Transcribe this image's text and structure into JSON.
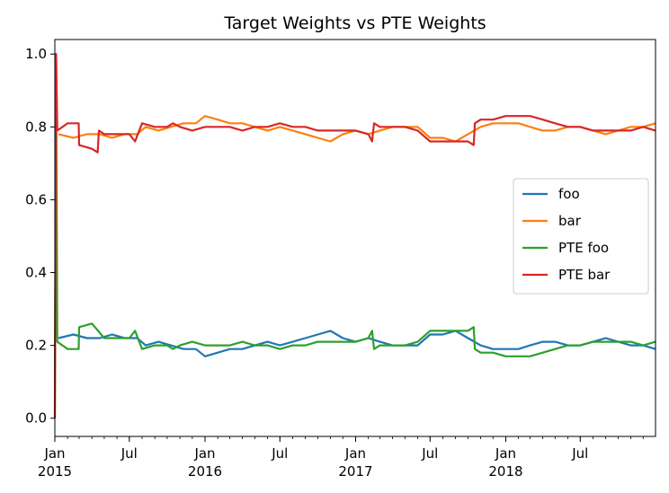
{
  "chart_data": {
    "type": "line",
    "title": "Target Weights vs PTE Weights",
    "xlabel": "",
    "ylabel": "",
    "x_range": [
      "2015-01-01",
      "2018-12-31"
    ],
    "ylim": [
      -0.05,
      1.04
    ],
    "y_ticks": [
      0.0,
      0.2,
      0.4,
      0.6,
      0.8,
      1.0
    ],
    "y_tick_labels": [
      "0.0",
      "0.2",
      "0.4",
      "0.6",
      "0.8",
      "1.0"
    ],
    "x_ticks": [
      {
        "date": "2015-01-01",
        "label": "Jan",
        "sublabel": "2015"
      },
      {
        "date": "2015-07-01",
        "label": "Jul",
        "sublabel": ""
      },
      {
        "date": "2016-01-01",
        "label": "Jan",
        "sublabel": "2016"
      },
      {
        "date": "2016-07-01",
        "label": "Jul",
        "sublabel": ""
      },
      {
        "date": "2017-01-01",
        "label": "Jan",
        "sublabel": "2017"
      },
      {
        "date": "2017-07-01",
        "label": "Jul",
        "sublabel": ""
      },
      {
        "date": "2018-01-01",
        "label": "Jan",
        "sublabel": "2018"
      },
      {
        "date": "2018-07-01",
        "label": "Jul",
        "sublabel": ""
      }
    ],
    "grid": false,
    "legend_position": "center-right",
    "series": [
      {
        "name": "foo",
        "color": "#1f77b4",
        "points": [
          [
            "2015-01-10",
            0.22
          ],
          [
            "2015-02-15",
            0.23
          ],
          [
            "2015-03-20",
            0.22
          ],
          [
            "2015-04-20",
            0.22
          ],
          [
            "2015-05-20",
            0.23
          ],
          [
            "2015-06-20",
            0.22
          ],
          [
            "2015-07-20",
            0.22
          ],
          [
            "2015-08-10",
            0.2
          ],
          [
            "2015-09-10",
            0.21
          ],
          [
            "2015-10-10",
            0.2
          ],
          [
            "2015-11-10",
            0.19
          ],
          [
            "2015-12-10",
            0.19
          ],
          [
            "2016-01-01",
            0.17
          ],
          [
            "2016-02-01",
            0.18
          ],
          [
            "2016-03-01",
            0.19
          ],
          [
            "2016-04-01",
            0.19
          ],
          [
            "2016-05-01",
            0.2
          ],
          [
            "2016-06-01",
            0.21
          ],
          [
            "2016-07-01",
            0.2
          ],
          [
            "2016-08-01",
            0.21
          ],
          [
            "2016-09-01",
            0.22
          ],
          [
            "2016-10-01",
            0.23
          ],
          [
            "2016-11-01",
            0.24
          ],
          [
            "2016-12-01",
            0.22
          ],
          [
            "2017-01-01",
            0.21
          ],
          [
            "2017-02-01",
            0.22
          ],
          [
            "2017-03-01",
            0.21
          ],
          [
            "2017-04-01",
            0.2
          ],
          [
            "2017-05-01",
            0.2
          ],
          [
            "2017-06-01",
            0.2
          ],
          [
            "2017-07-01",
            0.23
          ],
          [
            "2017-08-01",
            0.23
          ],
          [
            "2017-09-01",
            0.24
          ],
          [
            "2017-10-01",
            0.22
          ],
          [
            "2017-11-01",
            0.2
          ],
          [
            "2017-12-01",
            0.19
          ],
          [
            "2018-01-01",
            0.19
          ],
          [
            "2018-02-01",
            0.19
          ],
          [
            "2018-03-01",
            0.2
          ],
          [
            "2018-04-01",
            0.21
          ],
          [
            "2018-05-01",
            0.21
          ],
          [
            "2018-06-01",
            0.2
          ],
          [
            "2018-07-01",
            0.2
          ],
          [
            "2018-08-01",
            0.21
          ],
          [
            "2018-09-01",
            0.22
          ],
          [
            "2018-10-01",
            0.21
          ],
          [
            "2018-11-01",
            0.2
          ],
          [
            "2018-12-01",
            0.2
          ],
          [
            "2018-12-31",
            0.19
          ]
        ]
      },
      {
        "name": "bar",
        "color": "#ff7f0e",
        "points": [
          [
            "2015-01-10",
            0.78
          ],
          [
            "2015-02-15",
            0.77
          ],
          [
            "2015-03-20",
            0.78
          ],
          [
            "2015-04-20",
            0.78
          ],
          [
            "2015-05-20",
            0.77
          ],
          [
            "2015-06-20",
            0.78
          ],
          [
            "2015-07-20",
            0.78
          ],
          [
            "2015-08-10",
            0.8
          ],
          [
            "2015-09-10",
            0.79
          ],
          [
            "2015-10-10",
            0.8
          ],
          [
            "2015-11-10",
            0.81
          ],
          [
            "2015-12-10",
            0.81
          ],
          [
            "2016-01-01",
            0.83
          ],
          [
            "2016-02-01",
            0.82
          ],
          [
            "2016-03-01",
            0.81
          ],
          [
            "2016-04-01",
            0.81
          ],
          [
            "2016-05-01",
            0.8
          ],
          [
            "2016-06-01",
            0.79
          ],
          [
            "2016-07-01",
            0.8
          ],
          [
            "2016-08-01",
            0.79
          ],
          [
            "2016-09-01",
            0.78
          ],
          [
            "2016-10-01",
            0.77
          ],
          [
            "2016-11-01",
            0.76
          ],
          [
            "2016-12-01",
            0.78
          ],
          [
            "2017-01-01",
            0.79
          ],
          [
            "2017-02-01",
            0.78
          ],
          [
            "2017-03-01",
            0.79
          ],
          [
            "2017-04-01",
            0.8
          ],
          [
            "2017-05-01",
            0.8
          ],
          [
            "2017-06-01",
            0.8
          ],
          [
            "2017-07-01",
            0.77
          ],
          [
            "2017-08-01",
            0.77
          ],
          [
            "2017-09-01",
            0.76
          ],
          [
            "2017-10-01",
            0.78
          ],
          [
            "2017-11-01",
            0.8
          ],
          [
            "2017-12-01",
            0.81
          ],
          [
            "2018-01-01",
            0.81
          ],
          [
            "2018-02-01",
            0.81
          ],
          [
            "2018-03-01",
            0.8
          ],
          [
            "2018-04-01",
            0.79
          ],
          [
            "2018-05-01",
            0.79
          ],
          [
            "2018-06-01",
            0.8
          ],
          [
            "2018-07-01",
            0.8
          ],
          [
            "2018-08-01",
            0.79
          ],
          [
            "2018-09-01",
            0.78
          ],
          [
            "2018-10-01",
            0.79
          ],
          [
            "2018-11-01",
            0.8
          ],
          [
            "2018-12-01",
            0.8
          ],
          [
            "2018-12-31",
            0.81
          ]
        ]
      },
      {
        "name": "PTE foo",
        "color": "#2ca02c",
        "points": [
          [
            "2015-01-01",
            0.0
          ],
          [
            "2015-01-04",
            1.0
          ],
          [
            "2015-01-07",
            0.21
          ],
          [
            "2015-02-01",
            0.19
          ],
          [
            "2015-02-28",
            0.19
          ],
          [
            "2015-03-01",
            0.25
          ],
          [
            "2015-04-01",
            0.26
          ],
          [
            "2015-05-01",
            0.22
          ],
          [
            "2015-06-01",
            0.22
          ],
          [
            "2015-07-01",
            0.22
          ],
          [
            "2015-07-15",
            0.24
          ],
          [
            "2015-08-01",
            0.19
          ],
          [
            "2015-09-01",
            0.2
          ],
          [
            "2015-10-01",
            0.2
          ],
          [
            "2015-10-15",
            0.19
          ],
          [
            "2015-11-01",
            0.2
          ],
          [
            "2015-12-01",
            0.21
          ],
          [
            "2016-01-01",
            0.2
          ],
          [
            "2016-02-01",
            0.2
          ],
          [
            "2016-03-01",
            0.2
          ],
          [
            "2016-04-01",
            0.21
          ],
          [
            "2016-05-01",
            0.2
          ],
          [
            "2016-06-01",
            0.2
          ],
          [
            "2016-07-01",
            0.19
          ],
          [
            "2016-08-01",
            0.2
          ],
          [
            "2016-09-01",
            0.2
          ],
          [
            "2016-10-01",
            0.21
          ],
          [
            "2016-11-01",
            0.21
          ],
          [
            "2016-12-01",
            0.21
          ],
          [
            "2017-01-01",
            0.21
          ],
          [
            "2017-02-01",
            0.22
          ],
          [
            "2017-02-10",
            0.24
          ],
          [
            "2017-02-15",
            0.19
          ],
          [
            "2017-03-01",
            0.2
          ],
          [
            "2017-04-01",
            0.2
          ],
          [
            "2017-05-01",
            0.2
          ],
          [
            "2017-06-01",
            0.21
          ],
          [
            "2017-07-01",
            0.24
          ],
          [
            "2017-08-01",
            0.24
          ],
          [
            "2017-09-01",
            0.24
          ],
          [
            "2017-10-01",
            0.24
          ],
          [
            "2017-10-15",
            0.25
          ],
          [
            "2017-10-18",
            0.19
          ],
          [
            "2017-11-01",
            0.18
          ],
          [
            "2017-12-01",
            0.18
          ],
          [
            "2018-01-01",
            0.17
          ],
          [
            "2018-02-01",
            0.17
          ],
          [
            "2018-03-01",
            0.17
          ],
          [
            "2018-04-01",
            0.18
          ],
          [
            "2018-05-01",
            0.19
          ],
          [
            "2018-06-01",
            0.2
          ],
          [
            "2018-07-01",
            0.2
          ],
          [
            "2018-08-01",
            0.21
          ],
          [
            "2018-09-01",
            0.21
          ],
          [
            "2018-10-01",
            0.21
          ],
          [
            "2018-11-01",
            0.21
          ],
          [
            "2018-12-01",
            0.2
          ],
          [
            "2018-12-31",
            0.21
          ]
        ]
      },
      {
        "name": "PTE bar",
        "color": "#d62728",
        "points": [
          [
            "2015-01-01",
            0.0
          ],
          [
            "2015-01-04",
            1.0
          ],
          [
            "2015-01-07",
            0.79
          ],
          [
            "2015-02-01",
            0.81
          ],
          [
            "2015-02-28",
            0.81
          ],
          [
            "2015-03-01",
            0.75
          ],
          [
            "2015-04-01",
            0.74
          ],
          [
            "2015-04-15",
            0.73
          ],
          [
            "2015-04-18",
            0.79
          ],
          [
            "2015-05-01",
            0.78
          ],
          [
            "2015-06-01",
            0.78
          ],
          [
            "2015-07-01",
            0.78
          ],
          [
            "2015-07-15",
            0.76
          ],
          [
            "2015-08-01",
            0.81
          ],
          [
            "2015-09-01",
            0.8
          ],
          [
            "2015-10-01",
            0.8
          ],
          [
            "2015-10-15",
            0.81
          ],
          [
            "2015-11-01",
            0.8
          ],
          [
            "2015-12-01",
            0.79
          ],
          [
            "2016-01-01",
            0.8
          ],
          [
            "2016-02-01",
            0.8
          ],
          [
            "2016-03-01",
            0.8
          ],
          [
            "2016-04-01",
            0.79
          ],
          [
            "2016-05-01",
            0.8
          ],
          [
            "2016-06-01",
            0.8
          ],
          [
            "2016-07-01",
            0.81
          ],
          [
            "2016-08-01",
            0.8
          ],
          [
            "2016-09-01",
            0.8
          ],
          [
            "2016-10-01",
            0.79
          ],
          [
            "2016-11-01",
            0.79
          ],
          [
            "2016-12-01",
            0.79
          ],
          [
            "2017-01-01",
            0.79
          ],
          [
            "2017-02-01",
            0.78
          ],
          [
            "2017-02-10",
            0.76
          ],
          [
            "2017-02-15",
            0.81
          ],
          [
            "2017-03-01",
            0.8
          ],
          [
            "2017-04-01",
            0.8
          ],
          [
            "2017-05-01",
            0.8
          ],
          [
            "2017-06-01",
            0.79
          ],
          [
            "2017-07-01",
            0.76
          ],
          [
            "2017-08-01",
            0.76
          ],
          [
            "2017-09-01",
            0.76
          ],
          [
            "2017-10-01",
            0.76
          ],
          [
            "2017-10-15",
            0.75
          ],
          [
            "2017-10-18",
            0.81
          ],
          [
            "2017-11-01",
            0.82
          ],
          [
            "2017-12-01",
            0.82
          ],
          [
            "2018-01-01",
            0.83
          ],
          [
            "2018-02-01",
            0.83
          ],
          [
            "2018-03-01",
            0.83
          ],
          [
            "2018-04-01",
            0.82
          ],
          [
            "2018-05-01",
            0.81
          ],
          [
            "2018-06-01",
            0.8
          ],
          [
            "2018-07-01",
            0.8
          ],
          [
            "2018-08-01",
            0.79
          ],
          [
            "2018-09-01",
            0.79
          ],
          [
            "2018-10-01",
            0.79
          ],
          [
            "2018-11-01",
            0.79
          ],
          [
            "2018-12-01",
            0.8
          ],
          [
            "2018-12-31",
            0.79
          ]
        ]
      }
    ]
  }
}
